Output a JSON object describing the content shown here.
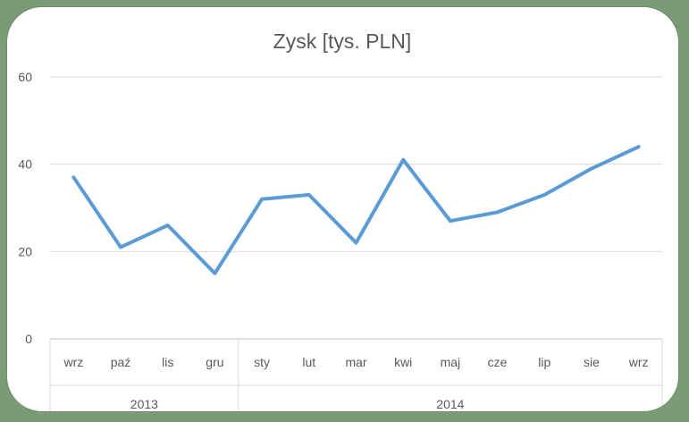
{
  "chart_data": {
    "type": "line",
    "title": "Zysk [tys. PLN]",
    "xlabel": "",
    "ylabel": "",
    "categories": [
      "wrz",
      "paź",
      "lis",
      "gru",
      "sty",
      "lut",
      "mar",
      "kwi",
      "maj",
      "cze",
      "lip",
      "sie",
      "wrz"
    ],
    "groups": [
      {
        "label": "2013",
        "count": 4
      },
      {
        "label": "2014",
        "count": 9
      }
    ],
    "series": [
      {
        "values": [
          37,
          21,
          26,
          15,
          32,
          33,
          22,
          41,
          27,
          29,
          33,
          39,
          44
        ]
      }
    ],
    "ylim": [
      0,
      60
    ],
    "yticks": [
      0,
      20,
      40,
      60
    ],
    "grid": true,
    "line_color": "#5b9bd5"
  }
}
